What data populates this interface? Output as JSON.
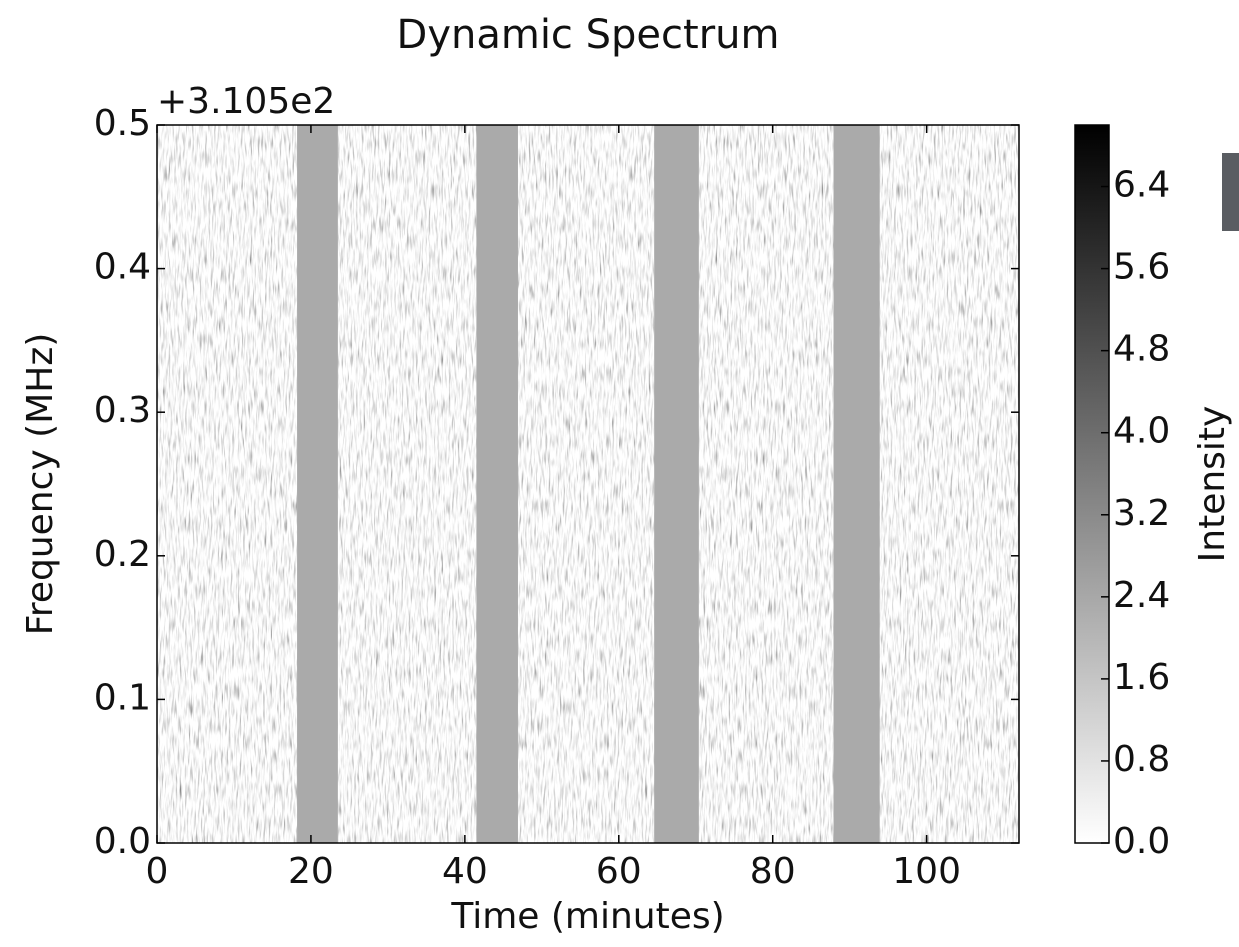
{
  "chart_data": {
    "type": "heatmap",
    "title": "Dynamic Spectrum",
    "x_label": "Time (minutes)",
    "y_label": "Frequency (MHz)",
    "y_offset_text": "+3.105e2",
    "xlim": [
      0,
      112
    ],
    "xticks": [
      0,
      20,
      40,
      60,
      80,
      100
    ],
    "ylim": [
      0,
      0.5
    ],
    "yticks": [
      {
        "value": 0,
        "label": "0.0"
      },
      0.1,
      0.2,
      0.3,
      0.4,
      0.5
    ],
    "gaps": [
      [
        18.2,
        23.5
      ],
      [
        41.5,
        46.9
      ],
      [
        64.6,
        70.4
      ],
      [
        87.9,
        93.9
      ]
    ],
    "gap_color": "#aaaaaa",
    "colormap": "gray_r",
    "colorbar": {
      "label": "Intensity",
      "lim": [
        0,
        7.0
      ],
      "ticks": [
        {
          "value": 0,
          "label": "0.0"
        },
        0.8,
        1.6,
        2.4,
        3.2,
        {
          "value": 4,
          "label": "4.0"
        },
        4.8,
        5.6,
        6.4
      ]
    }
  }
}
